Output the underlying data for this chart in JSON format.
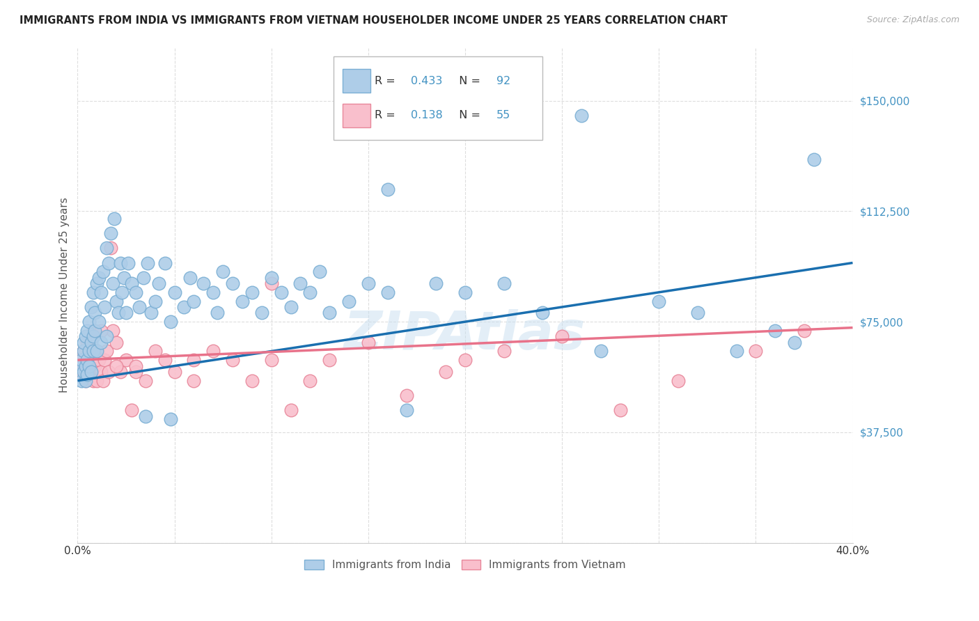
{
  "title": "IMMIGRANTS FROM INDIA VS IMMIGRANTS FROM VIETNAM HOUSEHOLDER INCOME UNDER 25 YEARS CORRELATION CHART",
  "source": "Source: ZipAtlas.com",
  "ylabel": "Householder Income Under 25 years",
  "yticks": [
    0,
    37500,
    75000,
    112500,
    150000
  ],
  "xticks": [
    0.0,
    0.05,
    0.1,
    0.15,
    0.2,
    0.25,
    0.3,
    0.35,
    0.4
  ],
  "xlim": [
    0.0,
    0.4
  ],
  "ylim": [
    0,
    168000
  ],
  "india_color": "#aecde8",
  "india_edge_color": "#7bafd4",
  "vietnam_color": "#f9bfcc",
  "vietnam_edge_color": "#e8879a",
  "india_line_color": "#1a6faf",
  "vietnam_line_color": "#e8728a",
  "india_R": 0.433,
  "india_N": 92,
  "vietnam_R": 0.138,
  "vietnam_N": 55,
  "r_n_color": "#4393c3",
  "legend_label_india": "Immigrants from India",
  "legend_label_vietnam": "Immigrants from Vietnam",
  "watermark": "ZIPAtlas",
  "background_color": "#ffffff",
  "grid_color": "#dddddd",
  "india_scatter_x": [
    0.001,
    0.002,
    0.002,
    0.003,
    0.003,
    0.003,
    0.004,
    0.004,
    0.004,
    0.005,
    0.005,
    0.005,
    0.006,
    0.006,
    0.006,
    0.007,
    0.007,
    0.007,
    0.008,
    0.008,
    0.008,
    0.009,
    0.009,
    0.01,
    0.01,
    0.011,
    0.011,
    0.012,
    0.012,
    0.013,
    0.014,
    0.015,
    0.015,
    0.016,
    0.017,
    0.018,
    0.019,
    0.02,
    0.021,
    0.022,
    0.023,
    0.024,
    0.025,
    0.026,
    0.028,
    0.03,
    0.032,
    0.034,
    0.036,
    0.038,
    0.04,
    0.042,
    0.045,
    0.048,
    0.05,
    0.055,
    0.058,
    0.06,
    0.065,
    0.07,
    0.072,
    0.075,
    0.08,
    0.085,
    0.09,
    0.095,
    0.1,
    0.105,
    0.11,
    0.115,
    0.12,
    0.125,
    0.13,
    0.14,
    0.15,
    0.16,
    0.17,
    0.185,
    0.2,
    0.22,
    0.24,
    0.27,
    0.3,
    0.32,
    0.34,
    0.36,
    0.37,
    0.38,
    0.16,
    0.26,
    0.035,
    0.048
  ],
  "india_scatter_y": [
    60000,
    62000,
    55000,
    65000,
    58000,
    68000,
    60000,
    70000,
    55000,
    62000,
    72000,
    57000,
    65000,
    75000,
    60000,
    68000,
    80000,
    58000,
    70000,
    65000,
    85000,
    72000,
    78000,
    88000,
    65000,
    90000,
    75000,
    85000,
    68000,
    92000,
    80000,
    100000,
    70000,
    95000,
    105000,
    88000,
    110000,
    82000,
    78000,
    95000,
    85000,
    90000,
    78000,
    95000,
    88000,
    85000,
    80000,
    90000,
    95000,
    78000,
    82000,
    88000,
    95000,
    75000,
    85000,
    80000,
    90000,
    82000,
    88000,
    85000,
    78000,
    92000,
    88000,
    82000,
    85000,
    78000,
    90000,
    85000,
    80000,
    88000,
    85000,
    92000,
    78000,
    82000,
    88000,
    85000,
    45000,
    88000,
    85000,
    88000,
    78000,
    65000,
    82000,
    78000,
    65000,
    72000,
    68000,
    130000,
    120000,
    145000,
    43000,
    42000
  ],
  "vietnam_scatter_x": [
    0.001,
    0.002,
    0.003,
    0.003,
    0.004,
    0.005,
    0.005,
    0.006,
    0.007,
    0.007,
    0.008,
    0.009,
    0.01,
    0.01,
    0.011,
    0.012,
    0.013,
    0.014,
    0.015,
    0.016,
    0.017,
    0.018,
    0.02,
    0.022,
    0.025,
    0.028,
    0.03,
    0.035,
    0.04,
    0.045,
    0.05,
    0.06,
    0.07,
    0.08,
    0.09,
    0.1,
    0.11,
    0.12,
    0.13,
    0.15,
    0.17,
    0.19,
    0.22,
    0.25,
    0.28,
    0.31,
    0.35,
    0.375,
    0.008,
    0.012,
    0.02,
    0.03,
    0.06,
    0.1,
    0.2
  ],
  "vietnam_scatter_y": [
    58000,
    62000,
    60000,
    65000,
    55000,
    62000,
    68000,
    58000,
    62000,
    65000,
    55000,
    60000,
    65000,
    55000,
    62000,
    58000,
    55000,
    62000,
    65000,
    58000,
    100000,
    72000,
    68000,
    58000,
    62000,
    45000,
    58000,
    55000,
    65000,
    62000,
    58000,
    55000,
    65000,
    62000,
    55000,
    62000,
    45000,
    55000,
    62000,
    68000,
    50000,
    58000,
    65000,
    70000,
    45000,
    55000,
    65000,
    72000,
    72000,
    72000,
    60000,
    60000,
    62000,
    88000,
    62000
  ]
}
